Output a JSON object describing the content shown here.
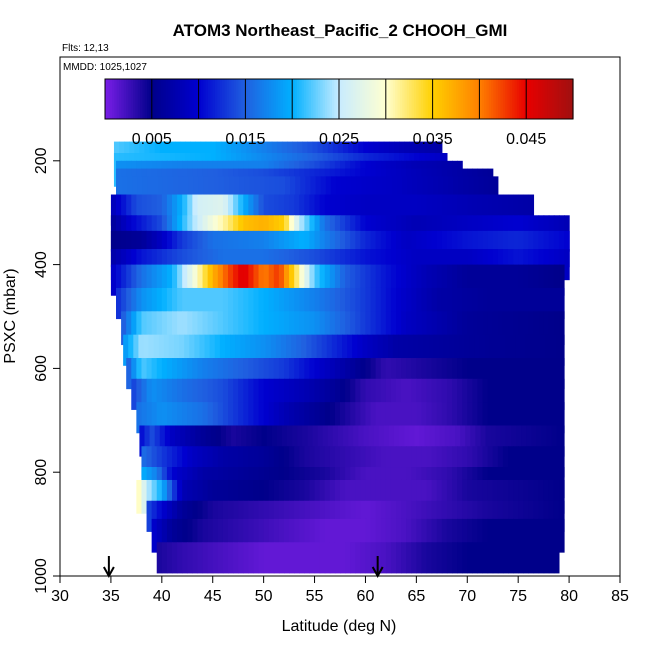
{
  "chart_data": {
    "type": "heatmap",
    "title": "ATOM3 Northeast_Pacific_2 CHOOH_GMI",
    "annotations": [
      "Flts: 12,13",
      "MMDD: 1025,1027"
    ],
    "xlabel": "Latitude (deg N)",
    "ylabel": "PSXC (mbar)",
    "xlim": [
      30,
      85
    ],
    "ylim": [
      1000,
      0
    ],
    "x_ticks": [
      30,
      35,
      40,
      45,
      50,
      55,
      60,
      65,
      70,
      75,
      80,
      85
    ],
    "y_ticks": [
      200,
      400,
      600,
      800,
      1000
    ],
    "colorbar": {
      "range": [
        0,
        0.05
      ],
      "tick_values": [
        0.005,
        0.015,
        0.025,
        0.035,
        0.045
      ],
      "tick_labels": [
        "0.005",
        "0.015",
        "0.025",
        "0.035",
        "0.045"
      ],
      "colors": [
        "#7a1ee8",
        "#00008a",
        "#0000d0",
        "#2060e0",
        "#00b0ff",
        "#c8ecff",
        "#ffffd0",
        "#ffd000",
        "#ff8000",
        "#e80000",
        "#a01010"
      ]
    },
    "layers": [
      {
        "p_top": 163,
        "p_bot": 235,
        "lat_min": 35.3,
        "lat_max": 67.5,
        "stops": [
          [
            35.3,
            0.022
          ],
          [
            40,
            0.02
          ],
          [
            45,
            0.02
          ],
          [
            50,
            0.017
          ],
          [
            55,
            0.014
          ],
          [
            60,
            0.01
          ],
          [
            64,
            0.008
          ],
          [
            67.5,
            0.007
          ]
        ]
      },
      {
        "p_top": 185,
        "p_bot": 250,
        "lat_min": 35.3,
        "lat_max": 68,
        "stops": [
          [
            35.3,
            0.021
          ],
          [
            45,
            0.02
          ],
          [
            55,
            0.015
          ],
          [
            60,
            0.012
          ],
          [
            68,
            0.009
          ]
        ]
      },
      {
        "p_top": 200,
        "p_bot": 265,
        "lat_min": 35.5,
        "lat_max": 69.5,
        "stops": [
          [
            35.5,
            0.018
          ],
          [
            42,
            0.017
          ],
          [
            50,
            0.017
          ],
          [
            55,
            0.014
          ],
          [
            60,
            0.01
          ],
          [
            65,
            0.008
          ],
          [
            69.5,
            0.007
          ]
        ]
      },
      {
        "p_top": 215,
        "p_bot": 280,
        "lat_min": 35.5,
        "lat_max": 72.5,
        "stops": [
          [
            35.5,
            0.016
          ],
          [
            45,
            0.015
          ],
          [
            50,
            0.014
          ],
          [
            55,
            0.012
          ],
          [
            60,
            0.01
          ],
          [
            66,
            0.008
          ],
          [
            72.5,
            0.006
          ]
        ]
      },
      {
        "p_top": 230,
        "p_bot": 295,
        "lat_min": 35.6,
        "lat_max": 73,
        "stops": [
          [
            35.6,
            0.016
          ],
          [
            45,
            0.015
          ],
          [
            52,
            0.014
          ],
          [
            57,
            0.01
          ],
          [
            63,
            0.009
          ],
          [
            73,
            0.006
          ]
        ]
      },
      {
        "p_top": 265,
        "p_bot": 325,
        "lat_min": 35,
        "lat_max": 76.5,
        "stops": [
          [
            35,
            0.008
          ],
          [
            37.5,
            0.014
          ],
          [
            40,
            0.015
          ],
          [
            42,
            0.02
          ],
          [
            43.5,
            0.026
          ],
          [
            46,
            0.027
          ],
          [
            48,
            0.02
          ],
          [
            50,
            0.014
          ],
          [
            53,
            0.013
          ],
          [
            56,
            0.01
          ],
          [
            60,
            0.009
          ],
          [
            65,
            0.009
          ],
          [
            70,
            0.008
          ],
          [
            76.5,
            0.007
          ]
        ]
      },
      {
        "p_top": 305,
        "p_bot": 375,
        "lat_min": 35,
        "lat_max": 80,
        "stops": [
          [
            35,
            0.006
          ],
          [
            37,
            0.01
          ],
          [
            40,
            0.014
          ],
          [
            43,
            0.024
          ],
          [
            45,
            0.029
          ],
          [
            46.5,
            0.032
          ],
          [
            48,
            0.036
          ],
          [
            50,
            0.037
          ],
          [
            52,
            0.035
          ],
          [
            53.5,
            0.025
          ],
          [
            56,
            0.016
          ],
          [
            60,
            0.01
          ],
          [
            65,
            0.008
          ],
          [
            70,
            0.009
          ],
          [
            75,
            0.01
          ],
          [
            80,
            0.008
          ]
        ]
      },
      {
        "p_top": 335,
        "p_bot": 405,
        "lat_min": 35,
        "lat_max": 80,
        "stops": [
          [
            35,
            0.005
          ],
          [
            38,
            0.006
          ],
          [
            40,
            0.009
          ],
          [
            42,
            0.013
          ],
          [
            45,
            0.016
          ],
          [
            50,
            0.017
          ],
          [
            54,
            0.02
          ],
          [
            56,
            0.017
          ],
          [
            60,
            0.012
          ],
          [
            64,
            0.009
          ],
          [
            70,
            0.011
          ],
          [
            75,
            0.012
          ],
          [
            80,
            0.01
          ]
        ]
      },
      {
        "p_top": 370,
        "p_bot": 430,
        "lat_min": 35,
        "lat_max": 80,
        "stops": [
          [
            35,
            0.007
          ],
          [
            38,
            0.011
          ],
          [
            42,
            0.014
          ],
          [
            46,
            0.016
          ],
          [
            50,
            0.016
          ],
          [
            55,
            0.014
          ],
          [
            60,
            0.011
          ],
          [
            65,
            0.009
          ],
          [
            70,
            0.009
          ],
          [
            75,
            0.011
          ],
          [
            80,
            0.009
          ]
        ]
      },
      {
        "p_top": 400,
        "p_bot": 460,
        "lat_min": 35,
        "lat_max": 79.5,
        "stops": [
          [
            35,
            0.009
          ],
          [
            38,
            0.016
          ],
          [
            41,
            0.02
          ],
          [
            43,
            0.028
          ],
          [
            45,
            0.037
          ],
          [
            46.5,
            0.042
          ],
          [
            48,
            0.046
          ],
          [
            50,
            0.04
          ],
          [
            51.5,
            0.043
          ],
          [
            53,
            0.034
          ],
          [
            55,
            0.022
          ],
          [
            58,
            0.015
          ],
          [
            62,
            0.011
          ],
          [
            66,
            0.008
          ],
          [
            70,
            0.006
          ],
          [
            75,
            0.006
          ],
          [
            79.5,
            0.005
          ]
        ]
      },
      {
        "p_top": 445,
        "p_bot": 505,
        "lat_min": 35.5,
        "lat_max": 79.5,
        "stops": [
          [
            35.5,
            0.012
          ],
          [
            38,
            0.018
          ],
          [
            42,
            0.022
          ],
          [
            46,
            0.022
          ],
          [
            50,
            0.02
          ],
          [
            55,
            0.017
          ],
          [
            60,
            0.013
          ],
          [
            63,
            0.01
          ],
          [
            67,
            0.007
          ],
          [
            72,
            0.006
          ],
          [
            79.5,
            0.006
          ]
        ]
      },
      {
        "p_top": 490,
        "p_bot": 555,
        "lat_min": 36,
        "lat_max": 79.5,
        "stops": [
          [
            36,
            0.014
          ],
          [
            38,
            0.022
          ],
          [
            42,
            0.024
          ],
          [
            46,
            0.022
          ],
          [
            50,
            0.02
          ],
          [
            55,
            0.018
          ],
          [
            58,
            0.015
          ],
          [
            61,
            0.012
          ],
          [
            64,
            0.009
          ],
          [
            70,
            0.006
          ],
          [
            79.5,
            0.005
          ]
        ]
      },
      {
        "p_top": 535,
        "p_bot": 595,
        "lat_min": 36.2,
        "lat_max": 79.5,
        "stops": [
          [
            36.2,
            0.018
          ],
          [
            38,
            0.024
          ],
          [
            42,
            0.023
          ],
          [
            46,
            0.02
          ],
          [
            50,
            0.018
          ],
          [
            54,
            0.015
          ],
          [
            57,
            0.012
          ],
          [
            60,
            0.009
          ],
          [
            63,
            0.007
          ],
          [
            70,
            0.006
          ],
          [
            79.5,
            0.005
          ]
        ]
      },
      {
        "p_top": 580,
        "p_bot": 640,
        "lat_min": 36.5,
        "lat_max": 79.5,
        "stops": [
          [
            36.5,
            0.014
          ],
          [
            38,
            0.022
          ],
          [
            40,
            0.02
          ],
          [
            44,
            0.017
          ],
          [
            48,
            0.015
          ],
          [
            52,
            0.013
          ],
          [
            55,
            0.01
          ],
          [
            57,
            0.008
          ],
          [
            60,
            0.005
          ],
          [
            62,
            0.003
          ],
          [
            66,
            0.004
          ],
          [
            70,
            0.005
          ],
          [
            79.5,
            0.005
          ]
        ]
      },
      {
        "p_top": 620,
        "p_bot": 680,
        "lat_min": 37,
        "lat_max": 79.5,
        "stops": [
          [
            37,
            0.013
          ],
          [
            39,
            0.018
          ],
          [
            42,
            0.016
          ],
          [
            46,
            0.014
          ],
          [
            50,
            0.01
          ],
          [
            54,
            0.008
          ],
          [
            57,
            0.006
          ],
          [
            60,
            0.003
          ],
          [
            64,
            0.002
          ],
          [
            68,
            0.003
          ],
          [
            72,
            0.005
          ],
          [
            79.5,
            0.005
          ]
        ]
      },
      {
        "p_top": 665,
        "p_bot": 725,
        "lat_min": 37.5,
        "lat_max": 79.5,
        "stops": [
          [
            37.5,
            0.016
          ],
          [
            40,
            0.018
          ],
          [
            44,
            0.016
          ],
          [
            48,
            0.012
          ],
          [
            52,
            0.008
          ],
          [
            55,
            0.006
          ],
          [
            58,
            0.004
          ],
          [
            61,
            0.002
          ],
          [
            65,
            0.002
          ],
          [
            68,
            0.003
          ],
          [
            72,
            0.005
          ],
          [
            79.5,
            0.005
          ]
        ]
      },
      {
        "p_top": 710,
        "p_bot": 770,
        "lat_min": 37.8,
        "lat_max": 79.5,
        "stops": [
          [
            37.8,
            0.01
          ],
          [
            39,
            0.014
          ],
          [
            41,
            0.009
          ],
          [
            44,
            0.006
          ],
          [
            47,
            0.004
          ],
          [
            50,
            0.005
          ],
          [
            54,
            0.004
          ],
          [
            57,
            0.003
          ],
          [
            60,
            0.002
          ],
          [
            65,
            0.001
          ],
          [
            69,
            0.002
          ],
          [
            72,
            0.004
          ],
          [
            79.5,
            0.005
          ]
        ]
      },
      {
        "p_top": 750,
        "p_bot": 810,
        "lat_min": 38,
        "lat_max": 79.5,
        "stops": [
          [
            38,
            0.016
          ],
          [
            40,
            0.013
          ],
          [
            43,
            0.009
          ],
          [
            46,
            0.007
          ],
          [
            50,
            0.006
          ],
          [
            54,
            0.004
          ],
          [
            58,
            0.003
          ],
          [
            62,
            0.002
          ],
          [
            66,
            0.002
          ],
          [
            70,
            0.003
          ],
          [
            74,
            0.005
          ],
          [
            79.5,
            0.005
          ]
        ]
      },
      {
        "p_top": 790,
        "p_bot": 850,
        "lat_min": 38,
        "lat_max": 79.5,
        "stops": [
          [
            38,
            0.02
          ],
          [
            39.5,
            0.017
          ],
          [
            41,
            0.01
          ],
          [
            44,
            0.007
          ],
          [
            48,
            0.006
          ],
          [
            52,
            0.005
          ],
          [
            56,
            0.004
          ],
          [
            60,
            0.002
          ],
          [
            64,
            0.002
          ],
          [
            68,
            0.003
          ],
          [
            72,
            0.005
          ],
          [
            79.5,
            0.005
          ]
        ]
      },
      {
        "p_top": 815,
        "p_bot": 880,
        "lat_min": 37.5,
        "lat_max": 79.5,
        "stops": [
          [
            37.5,
            0.032
          ],
          [
            38.5,
            0.025
          ],
          [
            40,
            0.02
          ],
          [
            42,
            0.008
          ],
          [
            45,
            0.006
          ],
          [
            50,
            0.005
          ],
          [
            54,
            0.004
          ],
          [
            58,
            0.002
          ],
          [
            62,
            0.002
          ],
          [
            66,
            0.002
          ],
          [
            70,
            0.004
          ],
          [
            79.5,
            0.005
          ]
        ]
      },
      {
        "p_top": 855,
        "p_bot": 915,
        "lat_min": 38.5,
        "lat_max": 79.5,
        "stops": [
          [
            38.5,
            0.014
          ],
          [
            40,
            0.01
          ],
          [
            42,
            0.006
          ],
          [
            45,
            0.004
          ],
          [
            50,
            0.003
          ],
          [
            55,
            0.002
          ],
          [
            60,
            0.001
          ],
          [
            64,
            0.002
          ],
          [
            68,
            0.003
          ],
          [
            72,
            0.004
          ],
          [
            79.5,
            0.005
          ]
        ]
      },
      {
        "p_top": 890,
        "p_bot": 955,
        "lat_min": 39,
        "lat_max": 79.5,
        "stops": [
          [
            39,
            0.01
          ],
          [
            41,
            0.006
          ],
          [
            44,
            0.004
          ],
          [
            48,
            0.003
          ],
          [
            52,
            0.002
          ],
          [
            56,
            0.001
          ],
          [
            60,
            0.001
          ],
          [
            64,
            0.002
          ],
          [
            68,
            0.004
          ],
          [
            72,
            0.005
          ],
          [
            79.5,
            0.005
          ]
        ]
      },
      {
        "p_top": 935,
        "p_bot": 995,
        "lat_min": 39.5,
        "lat_max": 79,
        "stops": [
          [
            39.5,
            0.004
          ],
          [
            42,
            0.003
          ],
          [
            46,
            0.002
          ],
          [
            50,
            0.001
          ],
          [
            54,
            0.001
          ],
          [
            58,
            0.001
          ],
          [
            62,
            0.002
          ],
          [
            66,
            0.004
          ],
          [
            70,
            0.005
          ],
          [
            79,
            0.005
          ]
        ]
      }
    ],
    "flight_markers": [
      34.8,
      61.2
    ]
  }
}
